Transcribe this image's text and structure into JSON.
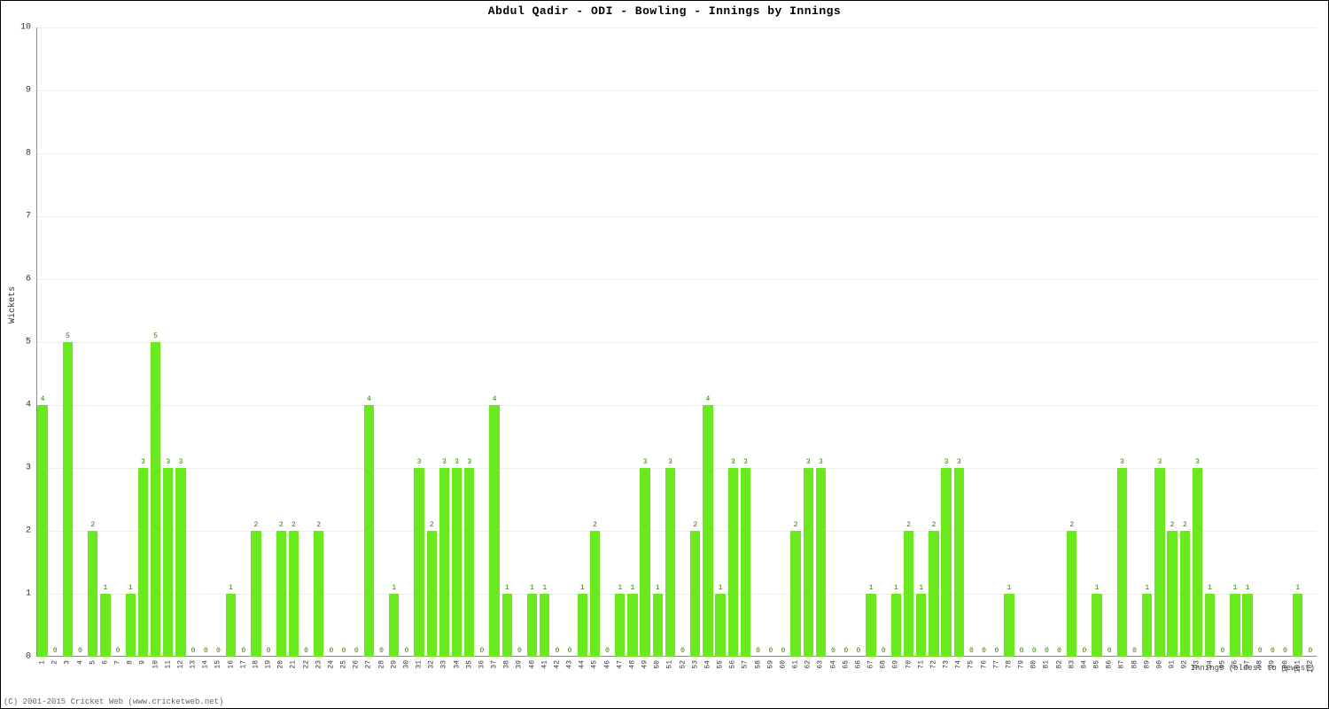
{
  "title": "Abdul Qadir - ODI - Bowling - Innings by Innings",
  "xlabel": "Innings (oldest to newest)",
  "ylabel": "Wickets",
  "copyright": "(C) 2001-2015 Cricket Web (www.cricketweb.net)",
  "chart": {
    "type": "bar",
    "ylim": [
      0,
      10
    ],
    "ytick_step": 1,
    "grid_color": "#eeeeee",
    "axis_color": "#888888",
    "background_color": "#ffffff",
    "bar_color": "#6aea1e",
    "value_label_color": "#2a7e00",
    "bar_width": 0.8,
    "title_fontsize": 13,
    "label_fontsize": 10,
    "tick_fontsize": 8,
    "values": [
      4,
      0,
      5,
      0,
      2,
      1,
      0,
      1,
      3,
      5,
      3,
      3,
      0,
      0,
      0,
      1,
      0,
      2,
      0,
      2,
      2,
      0,
      2,
      0,
      0,
      0,
      4,
      0,
      1,
      0,
      3,
      2,
      3,
      3,
      3,
      0,
      4,
      1,
      0,
      1,
      1,
      0,
      0,
      1,
      2,
      0,
      1,
      1,
      3,
      1,
      3,
      0,
      2,
      4,
      1,
      3,
      3,
      0,
      0,
      0,
      2,
      3,
      3,
      0,
      0,
      0,
      1,
      0,
      1,
      2,
      1,
      2,
      3,
      3,
      0,
      0,
      0,
      1,
      0,
      0,
      0,
      0,
      2,
      0,
      1,
      0,
      3,
      0,
      1,
      3,
      2,
      2,
      3,
      1,
      0,
      1,
      1,
      0,
      0,
      0,
      1,
      0
    ]
  }
}
